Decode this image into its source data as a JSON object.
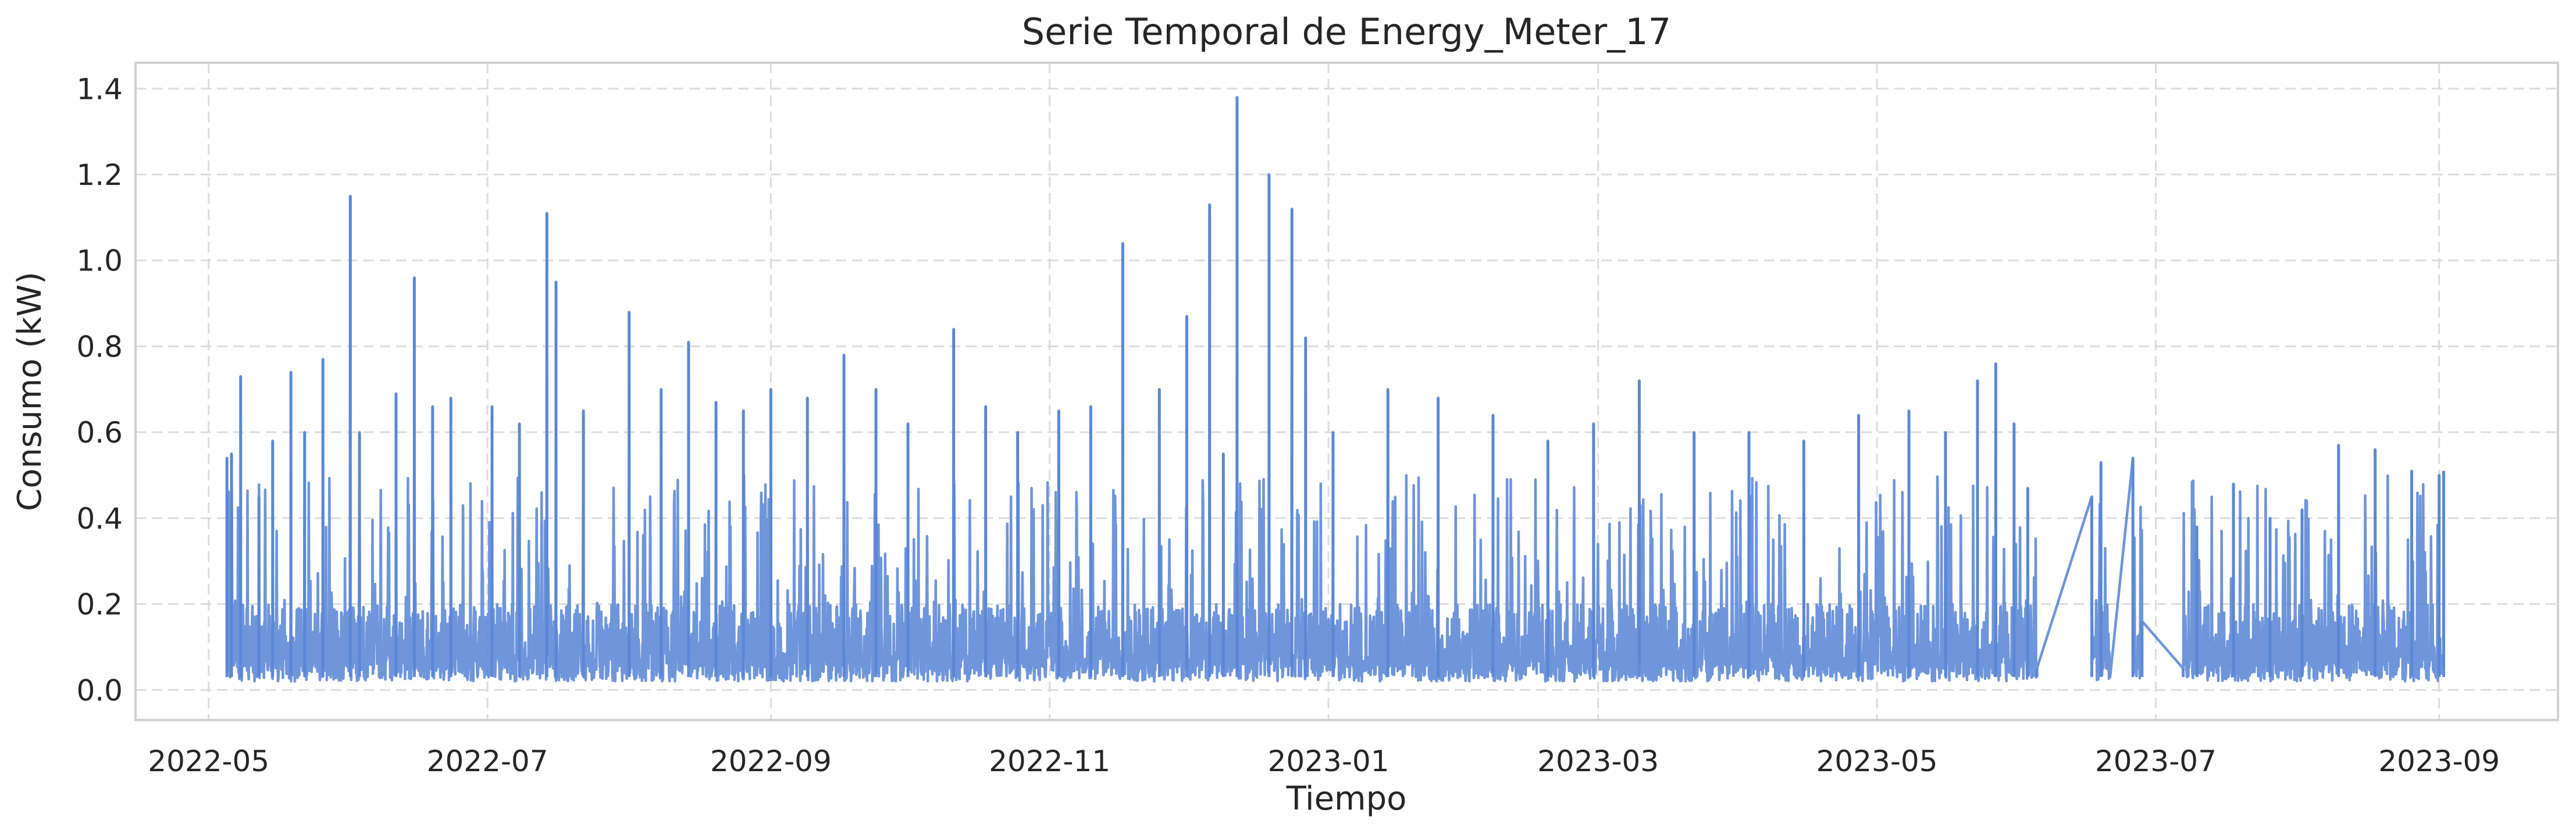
{
  "chart_data": {
    "type": "line",
    "title": "Serie Temporal de Energy_Meter_17",
    "xlabel": "Tiempo",
    "ylabel": "Consumo (kW)",
    "ylim": [
      -0.07,
      1.46
    ],
    "xlim": [
      "2022-04-15",
      "2023-09-27"
    ],
    "grid": true,
    "line_color": "#5b86d6",
    "x_ticks": [
      "2022-05",
      "2022-07",
      "2022-09",
      "2022-11",
      "2023-01",
      "2023-03",
      "2023-05",
      "2023-07",
      "2023-09"
    ],
    "y_ticks": [
      "0.0",
      "0.2",
      "0.4",
      "0.6",
      "0.8",
      "1.0",
      "1.2",
      "1.4"
    ],
    "baseline_kW": 0.05,
    "band_top_kW": 0.2,
    "data_gaps": [
      {
        "from": "2023-06-05",
        "to": "2023-06-17"
      },
      {
        "from": "2023-06-21",
        "to": "2023-06-26"
      },
      {
        "from": "2023-06-28",
        "to": "2023-07-07"
      }
    ],
    "series": [
      {
        "x": [
          "2022-05-05",
          "2022-05-06",
          "2022-05-08",
          "2022-05-12",
          "2022-05-15",
          "2022-05-19",
          "2022-05-22",
          "2022-05-26",
          "2022-06-01",
          "2022-06-03",
          "2022-06-11",
          "2022-06-15",
          "2022-06-19",
          "2022-06-23",
          "2022-07-02",
          "2022-07-08",
          "2022-07-14",
          "2022-07-16",
          "2022-07-22",
          "2022-08-01",
          "2022-08-08",
          "2022-08-14",
          "2022-08-20",
          "2022-08-26",
          "2022-09-01",
          "2022-09-09",
          "2022-09-17",
          "2022-09-24",
          "2022-10-01",
          "2022-10-11",
          "2022-10-18",
          "2022-10-25",
          "2022-11-03",
          "2022-11-10",
          "2022-11-17",
          "2022-11-25",
          "2022-12-01",
          "2022-12-06",
          "2022-12-09",
          "2022-12-12",
          "2022-12-19",
          "2022-12-24",
          "2022-12-27",
          "2023-01-02",
          "2023-01-14",
          "2023-01-25",
          "2023-02-06",
          "2023-02-18",
          "2023-02-28",
          "2023-03-10",
          "2023-03-22",
          "2023-04-03",
          "2023-04-15",
          "2023-04-27",
          "2023-05-08",
          "2023-05-16",
          "2023-05-23",
          "2023-05-27",
          "2023-05-31",
          "2023-06-03",
          "2023-06-05",
          "2023-06-17",
          "2023-06-19",
          "2023-06-21",
          "2023-06-26",
          "2023-06-28",
          "2023-07-07",
          "2023-07-10",
          "2023-07-18",
          "2023-07-26",
          "2023-08-02",
          "2023-08-10",
          "2023-08-18",
          "2023-08-26",
          "2023-09-01",
          "2023-09-02"
        ],
        "y": [
          0.54,
          0.55,
          0.73,
          0.45,
          0.58,
          0.74,
          0.6,
          0.77,
          1.15,
          0.6,
          0.69,
          0.96,
          0.66,
          0.68,
          0.66,
          0.62,
          1.11,
          0.95,
          0.65,
          0.88,
          0.7,
          0.81,
          0.67,
          0.65,
          0.7,
          0.68,
          0.78,
          0.7,
          0.62,
          0.84,
          0.66,
          0.6,
          0.65,
          0.66,
          1.04,
          0.7,
          0.87,
          1.13,
          0.55,
          1.38,
          1.2,
          1.12,
          0.82,
          0.6,
          0.7,
          0.68,
          0.64,
          0.58,
          0.62,
          0.72,
          0.6,
          0.6,
          0.58,
          0.64,
          0.65,
          0.6,
          0.72,
          0.76,
          0.62,
          0.47,
          0.05,
          0.45,
          0.53,
          0.03,
          0.54,
          0.16,
          0.05,
          0.38,
          0.48,
          0.4,
          0.42,
          0.57,
          0.56,
          0.51,
          0.5,
          0.51
        ]
      }
    ]
  }
}
